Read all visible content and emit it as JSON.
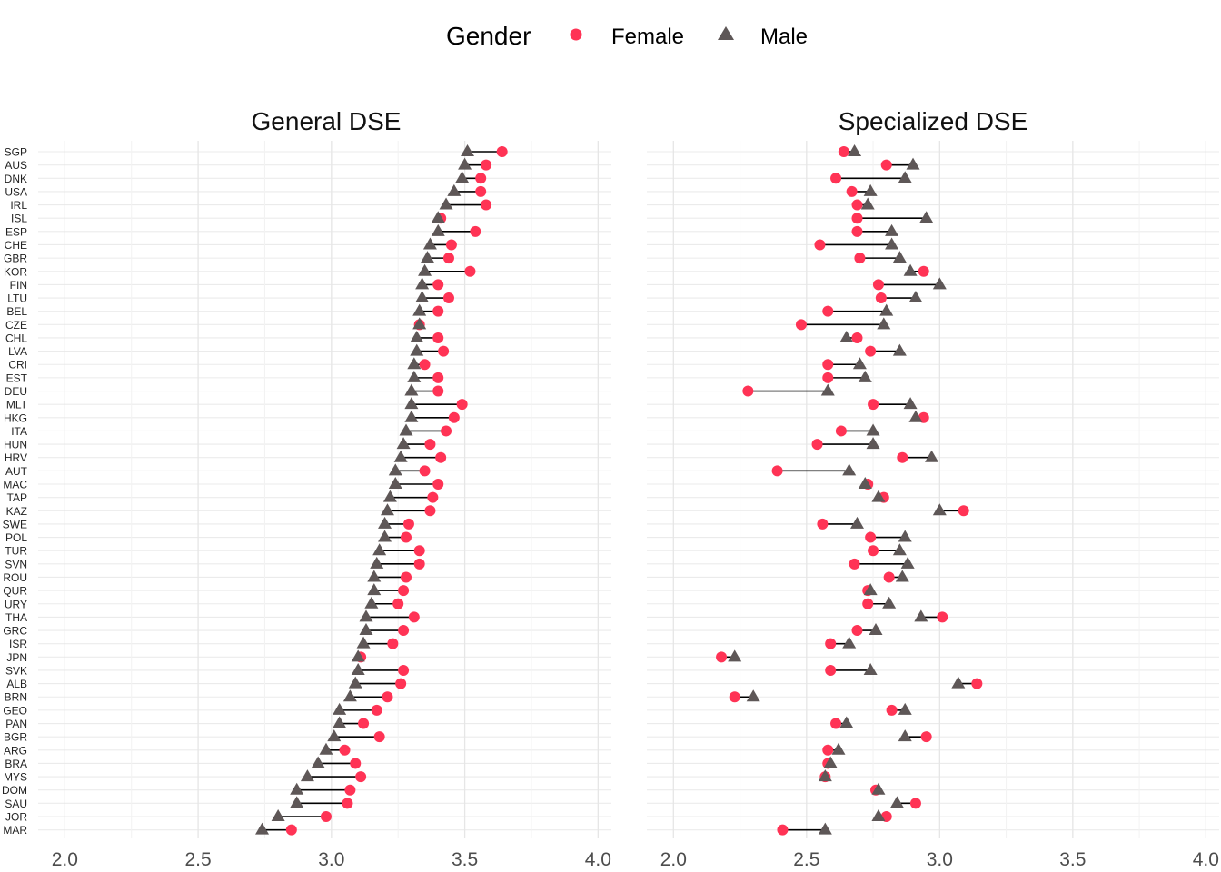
{
  "legend": {
    "title": "Gender",
    "female_label": "Female",
    "male_label": "Male",
    "female_color": "#FF3355",
    "male_color": "#5E5757"
  },
  "highlight_color": "#FF3355",
  "highlighted_countries": [
    "CHL",
    "MAR"
  ],
  "chart_data": [
    {
      "type": "dumbbell",
      "title": "General DSE",
      "xlim": [
        1.9,
        4.05
      ],
      "xticks": [
        "2.0",
        "2.5",
        "3.0",
        "3.5",
        "4.0"
      ],
      "countries": [
        "SGP",
        "AUS",
        "DNK",
        "USA",
        "IRL",
        "ISL",
        "ESP",
        "CHE",
        "GBR",
        "KOR",
        "FIN",
        "LTU",
        "BEL",
        "CZE",
        "CHL",
        "LVA",
        "CRI",
        "EST",
        "DEU",
        "MLT",
        "HKG",
        "ITA",
        "HUN",
        "HRV",
        "AUT",
        "MAC",
        "TAP",
        "KAZ",
        "SWE",
        "POL",
        "TUR",
        "SVN",
        "ROU",
        "QUR",
        "URY",
        "THA",
        "GRC",
        "ISR",
        "JPN",
        "SVK",
        "ALB",
        "BRN",
        "GEO",
        "PAN",
        "BGR",
        "ARG",
        "BRA",
        "MYS",
        "DOM",
        "SAU",
        "JOR",
        "MAR"
      ],
      "series": [
        {
          "name": "Female",
          "values": [
            3.64,
            3.58,
            3.56,
            3.56,
            3.58,
            3.41,
            3.54,
            3.45,
            3.44,
            3.52,
            3.4,
            3.44,
            3.4,
            3.33,
            3.4,
            3.42,
            3.35,
            3.4,
            3.4,
            3.49,
            3.46,
            3.43,
            3.37,
            3.41,
            3.35,
            3.4,
            3.38,
            3.37,
            3.29,
            3.28,
            3.33,
            3.33,
            3.28,
            3.27,
            3.25,
            3.31,
            3.27,
            3.23,
            3.11,
            3.27,
            3.26,
            3.21,
            3.17,
            3.12,
            3.18,
            3.05,
            3.09,
            3.11,
            3.07,
            3.06,
            2.98,
            2.85
          ]
        },
        {
          "name": "Male",
          "values": [
            3.51,
            3.5,
            3.49,
            3.46,
            3.43,
            3.4,
            3.4,
            3.37,
            3.36,
            3.35,
            3.34,
            3.34,
            3.33,
            3.33,
            3.32,
            3.32,
            3.31,
            3.31,
            3.3,
            3.3,
            3.3,
            3.28,
            3.27,
            3.26,
            3.24,
            3.24,
            3.22,
            3.21,
            3.2,
            3.2,
            3.18,
            3.17,
            3.16,
            3.16,
            3.15,
            3.13,
            3.13,
            3.12,
            3.1,
            3.1,
            3.09,
            3.07,
            3.03,
            3.03,
            3.01,
            2.98,
            2.95,
            2.91,
            2.87,
            2.87,
            2.8,
            2.74
          ]
        }
      ]
    },
    {
      "type": "dumbbell",
      "title": "Specialized DSE",
      "xlim": [
        1.9,
        4.05
      ],
      "xticks": [
        "2.0",
        "2.5",
        "3.0",
        "3.5",
        "4.0"
      ],
      "countries": [
        "SGP",
        "AUS",
        "DNK",
        "USA",
        "IRL",
        "ISL",
        "ESP",
        "CHE",
        "GBR",
        "KOR",
        "FIN",
        "LTU",
        "BEL",
        "CZE",
        "CHL",
        "LVA",
        "CRI",
        "EST",
        "DEU",
        "MLT",
        "HKG",
        "ITA",
        "HUN",
        "HRV",
        "AUT",
        "MAC",
        "TAP",
        "KAZ",
        "SWE",
        "POL",
        "TUR",
        "SVN",
        "ROU",
        "QUR",
        "URY",
        "THA",
        "GRC",
        "ISR",
        "JPN",
        "SVK",
        "ALB",
        "BRN",
        "GEO",
        "PAN",
        "BGR",
        "ARG",
        "BRA",
        "MYS",
        "DOM",
        "SAU",
        "JOR",
        "MAR"
      ],
      "series": [
        {
          "name": "Female",
          "values": [
            2.64,
            2.8,
            2.61,
            2.67,
            2.69,
            2.69,
            2.69,
            2.55,
            2.7,
            2.94,
            2.77,
            2.78,
            2.58,
            2.48,
            2.69,
            2.74,
            2.58,
            2.58,
            2.28,
            2.75,
            2.94,
            2.63,
            2.54,
            2.86,
            2.39,
            2.73,
            2.79,
            3.09,
            2.56,
            2.74,
            2.75,
            2.68,
            2.81,
            2.73,
            2.73,
            3.01,
            2.69,
            2.59,
            2.18,
            2.59,
            3.14,
            2.23,
            2.82,
            2.61,
            2.95,
            2.58,
            2.58,
            2.57,
            2.76,
            2.91,
            2.8,
            2.41
          ]
        },
        {
          "name": "Male",
          "values": [
            2.68,
            2.9,
            2.87,
            2.74,
            2.73,
            2.95,
            2.82,
            2.82,
            2.85,
            2.89,
            3.0,
            2.91,
            2.8,
            2.79,
            2.65,
            2.85,
            2.7,
            2.72,
            2.58,
            2.89,
            2.91,
            2.75,
            2.75,
            2.97,
            2.66,
            2.72,
            2.77,
            3.0,
            2.69,
            2.87,
            2.85,
            2.88,
            2.86,
            2.74,
            2.81,
            2.93,
            2.76,
            2.66,
            2.23,
            2.74,
            3.07,
            2.3,
            2.87,
            2.65,
            2.87,
            2.62,
            2.59,
            2.57,
            2.77,
            2.84,
            2.77,
            2.57
          ]
        }
      ]
    }
  ]
}
